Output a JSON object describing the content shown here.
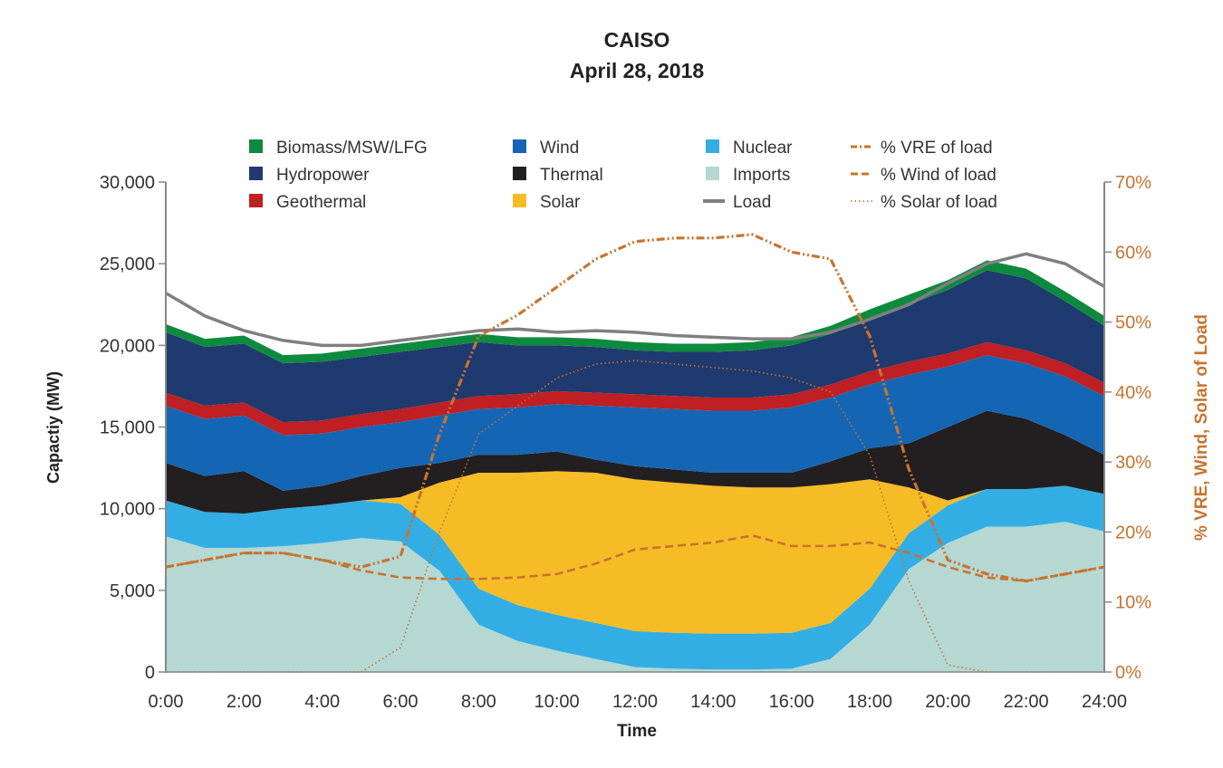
{
  "chart_data": {
    "type": "area",
    "title": "CAISO",
    "subtitle": "April 28, 2018",
    "xlabel": "Time",
    "ylabel": "Capactiy (MW)",
    "y2label": "% VRE, Wind, Solar of Load",
    "x": [
      0,
      1,
      2,
      3,
      4,
      5,
      6,
      7,
      8,
      9,
      10,
      11,
      12,
      13,
      14,
      15,
      16,
      17,
      18,
      19,
      20,
      21,
      22,
      23,
      24
    ],
    "xticks": [
      "0:00",
      "2:00",
      "4:00",
      "6:00",
      "8:00",
      "10:00",
      "12:00",
      "14:00",
      "16:00",
      "18:00",
      "20:00",
      "22:00",
      "24:00"
    ],
    "xlim": [
      0,
      24
    ],
    "ylim": [
      0,
      30000
    ],
    "yticks": [
      "0",
      "5,000",
      "10,000",
      "15,000",
      "20,000",
      "25,000",
      "30,000"
    ],
    "y2lim": [
      0,
      70
    ],
    "y2ticks": [
      "0%",
      "10%",
      "20%",
      "30%",
      "40%",
      "50%",
      "60%",
      "70%"
    ],
    "grid": false,
    "legend_position": "top",
    "stacked_series": [
      {
        "name": "Imports",
        "color": "#b5d8d3",
        "values": [
          8300,
          7600,
          7600,
          7700,
          7900,
          8200,
          8000,
          6200,
          2900,
          1900,
          1300,
          800,
          300,
          200,
          150,
          150,
          200,
          800,
          2900,
          6300,
          7900,
          8900,
          8900,
          9200,
          8600
        ]
      },
      {
        "name": "Nuclear",
        "color": "#33aee5",
        "values": [
          2200,
          2200,
          2100,
          2300,
          2300,
          2300,
          2300,
          2200,
          2200,
          2200,
          2200,
          2200,
          2200,
          2200,
          2200,
          2200,
          2200,
          2200,
          2200,
          2200,
          2300,
          2300,
          2300,
          2200,
          2300
        ]
      },
      {
        "name": "Solar",
        "color": "#f6bc25",
        "values": [
          0,
          0,
          0,
          0,
          0,
          0,
          400,
          3200,
          7100,
          8100,
          8800,
          9200,
          9300,
          9200,
          9050,
          8950,
          8900,
          8500,
          6700,
          2800,
          300,
          0,
          0,
          0,
          0
        ]
      },
      {
        "name": "Thermal",
        "color": "#231f20",
        "values": [
          2300,
          2200,
          2600,
          1100,
          1200,
          1500,
          1800,
          1200,
          1100,
          1100,
          1200,
          800,
          800,
          800,
          800,
          900,
          900,
          1400,
          1900,
          2700,
          4500,
          4800,
          4300,
          3100,
          2400
        ]
      },
      {
        "name": "Wind",
        "color": "#1466b4",
        "values": [
          3500,
          3500,
          3400,
          3400,
          3200,
          3000,
          2800,
          2900,
          2800,
          2900,
          2900,
          3300,
          3600,
          3700,
          3800,
          3800,
          4000,
          3900,
          3900,
          4200,
          3700,
          3400,
          3400,
          3600,
          3600
        ]
      },
      {
        "name": "Geothermal",
        "color": "#c01f23",
        "values": [
          800,
          800,
          800,
          800,
          800,
          800,
          800,
          800,
          800,
          800,
          800,
          800,
          800,
          800,
          800,
          800,
          800,
          800,
          800,
          800,
          800,
          800,
          800,
          800,
          800
        ]
      },
      {
        "name": "Hydropower",
        "color": "#1f3a6e",
        "values": [
          3700,
          3600,
          3600,
          3600,
          3600,
          3500,
          3500,
          3400,
          3300,
          3000,
          2800,
          2800,
          2700,
          2700,
          2800,
          2900,
          3000,
          3100,
          3200,
          3500,
          3900,
          4400,
          4400,
          3800,
          3500
        ]
      },
      {
        "name": "Biomass/MSW/LFG",
        "color": "#0e8a3e",
        "values": [
          500,
          500,
          500,
          500,
          500,
          500,
          500,
          500,
          500,
          500,
          500,
          500,
          500,
          500,
          500,
          500,
          500,
          500,
          600,
          600,
          600,
          600,
          600,
          600,
          600
        ]
      }
    ],
    "load_series": {
      "name": "Load",
      "color": "#808080",
      "values": [
        23200,
        21800,
        20900,
        20300,
        20000,
        20000,
        20300,
        20600,
        20900,
        21000,
        20800,
        20900,
        20800,
        20600,
        20500,
        20400,
        20400,
        20800,
        21600,
        22500,
        23800,
        25000,
        25600,
        25000,
        23600
      ]
    },
    "percent_series": [
      {
        "name": "% VRE of load",
        "color": "#c9732e",
        "style": "dash-dot-dot",
        "values": [
          15,
          16,
          17,
          17,
          16,
          15,
          16.5,
          34,
          48,
          51,
          55,
          59,
          61.5,
          62,
          62,
          62.5,
          60,
          59,
          48,
          29,
          16,
          14,
          13,
          14,
          15
        ]
      },
      {
        "name": "% Wind of load",
        "color": "#c9732e",
        "style": "dashed",
        "values": [
          15,
          16,
          17,
          17,
          16,
          14.5,
          13.5,
          13.3,
          13.3,
          13.5,
          14,
          15.5,
          17.5,
          18,
          18.5,
          19.5,
          18,
          18,
          18.5,
          17,
          15,
          13.5,
          13,
          14,
          15
        ]
      },
      {
        "name": "% Solar of load",
        "color": "#c9732e",
        "style": "dotted",
        "values": [
          0,
          0,
          0,
          0,
          0,
          0,
          3.5,
          20,
          34,
          38,
          42,
          44,
          44.5,
          44,
          43.5,
          43,
          42,
          40,
          31,
          13,
          1,
          0,
          0,
          0,
          0
        ]
      }
    ],
    "legend": [
      {
        "label": "Biomass/MSW/LFG",
        "color": "#0e8a3e",
        "kind": "box"
      },
      {
        "label": "Wind",
        "color": "#1466b4",
        "kind": "box"
      },
      {
        "label": "Nuclear",
        "color": "#33aee5",
        "kind": "box"
      },
      {
        "label": "% VRE of load",
        "color": "#c9732e",
        "kind": "dashdot"
      },
      {
        "label": "Hydropower",
        "color": "#1f3a6e",
        "kind": "box"
      },
      {
        "label": "Thermal",
        "color": "#231f20",
        "kind": "box"
      },
      {
        "label": "Imports",
        "color": "#b5d8d3",
        "kind": "box"
      },
      {
        "label": "% Wind of load",
        "color": "#c9732e",
        "kind": "dashed"
      },
      {
        "label": "Geothermal",
        "color": "#c01f23",
        "kind": "box"
      },
      {
        "label": "Solar",
        "color": "#f6bc25",
        "kind": "box"
      },
      {
        "label": "Load",
        "color": "#808080",
        "kind": "line"
      },
      {
        "label": "% Solar of load",
        "color": "#c9732e",
        "kind": "dotted"
      }
    ]
  }
}
